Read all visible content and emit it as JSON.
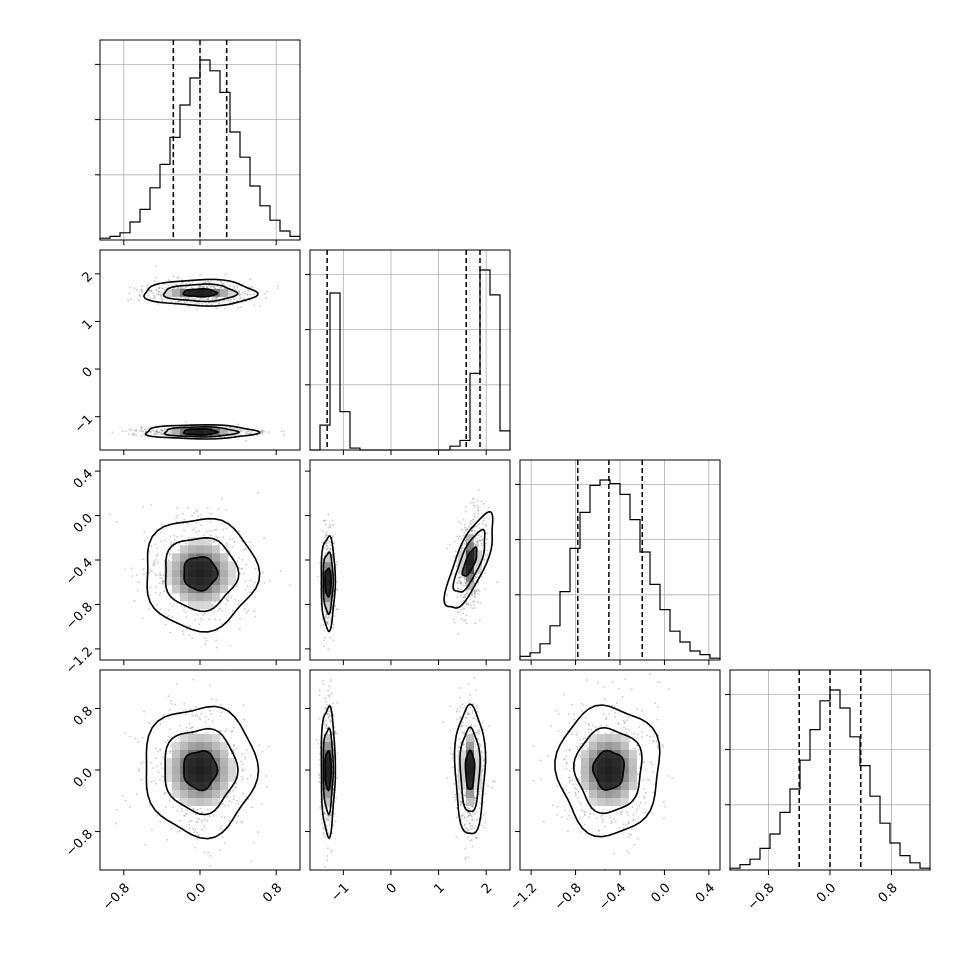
{
  "chart_data": {
    "type": "corner",
    "title": "",
    "parameters": [
      {
        "name": "",
        "range": [
          -1.05,
          1.05
        ],
        "ticks": [
          -0.8,
          0.0,
          0.8
        ],
        "tick_labels": [
          "−0.8",
          "0.0",
          "0.8"
        ],
        "quantiles": [
          -0.28,
          0.0,
          0.28
        ],
        "hist": [
          0.01,
          0.02,
          0.04,
          0.1,
          0.17,
          0.29,
          0.42,
          0.57,
          0.75,
          0.9,
          1.0,
          0.94,
          0.82,
          0.6,
          0.46,
          0.3,
          0.19,
          0.11,
          0.05,
          0.02
        ]
      },
      {
        "name": "",
        "range": [
          -1.7,
          2.5
        ],
        "ticks": [
          -1,
          0,
          1,
          2
        ],
        "tick_labels": [
          "−1",
          "0",
          "1",
          "2"
        ],
        "quantiles": [
          -1.34,
          1.58,
          1.87
        ],
        "hist": [
          0.0,
          0.13,
          0.82,
          0.2,
          0.01,
          0.0,
          0.0,
          0.0,
          0.0,
          0.0,
          0.0,
          0.0,
          0.0,
          0.0,
          0.02,
          0.05,
          0.4,
          0.94,
          0.81,
          0.1
        ]
      },
      {
        "name": "",
        "range": [
          -1.3,
          0.5
        ],
        "ticks": [
          -1.2,
          -0.8,
          -0.4,
          0.0,
          0.4
        ],
        "tick_labels": [
          "−1.2",
          "−0.8",
          "−0.4",
          "0.0",
          "0.4"
        ],
        "quantiles": [
          -0.78,
          -0.5,
          -0.2
        ],
        "hist": [
          0.02,
          0.04,
          0.09,
          0.19,
          0.38,
          0.62,
          0.82,
          0.97,
          1.0,
          0.98,
          0.92,
          0.78,
          0.6,
          0.42,
          0.28,
          0.16,
          0.1,
          0.05,
          0.03,
          0.01
        ]
      },
      {
        "name": "",
        "range": [
          -1.3,
          1.3
        ],
        "ticks": [
          -0.8,
          0.0,
          0.8
        ],
        "tick_labels": [
          "−0.8",
          "0.0",
          "0.8"
        ],
        "quantiles": [
          -0.4,
          0.0,
          0.4
        ],
        "hist": [
          0.01,
          0.03,
          0.06,
          0.12,
          0.2,
          0.32,
          0.45,
          0.61,
          0.78,
          0.94,
          1.0,
          0.9,
          0.74,
          0.58,
          0.41,
          0.26,
          0.15,
          0.08,
          0.04,
          0.01
        ]
      }
    ],
    "joint": [
      {
        "x_param": 0,
        "y_param": 1,
        "blobs": [
          {
            "mx": 0.0,
            "my": 1.6,
            "sx": 0.28,
            "sy": 0.13,
            "rho": 0.0
          },
          {
            "mx": 0.0,
            "my": -1.32,
            "sx": 0.28,
            "sy": 0.05,
            "rho": 0.0
          }
        ]
      },
      {
        "x_param": 0,
        "y_param": 2,
        "blobs": [
          {
            "mx": 0.0,
            "my": -0.52,
            "sx": 0.28,
            "sy": 0.24,
            "rho": 0.0
          }
        ]
      },
      {
        "x_param": 1,
        "y_param": 2,
        "blobs": [
          {
            "mx": -1.32,
            "my": -0.6,
            "sx": 0.07,
            "sy": 0.2,
            "rho": 0.0
          },
          {
            "mx": 1.66,
            "my": -0.42,
            "sx": 0.15,
            "sy": 0.22,
            "rho": -0.35
          }
        ]
      },
      {
        "x_param": 0,
        "y_param": 3,
        "blobs": [
          {
            "mx": 0.0,
            "my": 0.0,
            "sx": 0.28,
            "sy": 0.4,
            "rho": 0.0
          }
        ]
      },
      {
        "x_param": 1,
        "y_param": 3,
        "blobs": [
          {
            "mx": -1.32,
            "my": 0.0,
            "sx": 0.07,
            "sy": 0.4,
            "rho": 0.0
          },
          {
            "mx": 1.66,
            "my": 0.0,
            "sx": 0.15,
            "sy": 0.4,
            "rho": 0.0
          }
        ]
      },
      {
        "x_param": 2,
        "y_param": 3,
        "blobs": [
          {
            "mx": -0.5,
            "my": 0.0,
            "sx": 0.22,
            "sy": 0.4,
            "rho": 0.0
          }
        ]
      }
    ],
    "contour_levels": [
      0.3,
      0.65,
      1.0
    ],
    "grid": true,
    "legend": "none"
  }
}
